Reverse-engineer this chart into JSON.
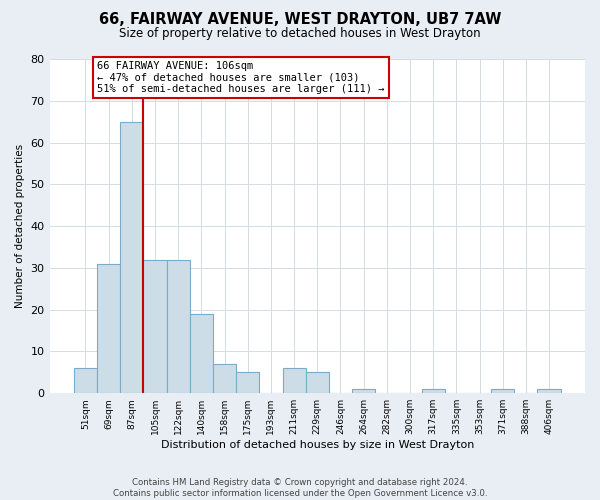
{
  "title": "66, FAIRWAY AVENUE, WEST DRAYTON, UB7 7AW",
  "subtitle": "Size of property relative to detached houses in West Drayton",
  "xlabel": "Distribution of detached houses by size in West Drayton",
  "ylabel": "Number of detached properties",
  "bin_labels": [
    "51sqm",
    "69sqm",
    "87sqm",
    "105sqm",
    "122sqm",
    "140sqm",
    "158sqm",
    "175sqm",
    "193sqm",
    "211sqm",
    "229sqm",
    "246sqm",
    "264sqm",
    "282sqm",
    "300sqm",
    "317sqm",
    "335sqm",
    "353sqm",
    "371sqm",
    "388sqm",
    "406sqm"
  ],
  "bar_heights": [
    6,
    31,
    65,
    32,
    32,
    19,
    7,
    5,
    0,
    6,
    5,
    0,
    1,
    0,
    0,
    1,
    0,
    0,
    1,
    0,
    1
  ],
  "bar_color": "#ccdde8",
  "bar_edge_color": "#7aacca",
  "vline_color": "#cc0000",
  "annotation_text": "66 FAIRWAY AVENUE: 106sqm\n← 47% of detached houses are smaller (103)\n51% of semi-detached houses are larger (111) →",
  "annotation_box_color": "#ffffff",
  "annotation_box_edge": "#cc0000",
  "ylim": [
    0,
    80
  ],
  "yticks": [
    0,
    10,
    20,
    30,
    40,
    50,
    60,
    70,
    80
  ],
  "footer_text": "Contains HM Land Registry data © Crown copyright and database right 2024.\nContains public sector information licensed under the Open Government Licence v3.0.",
  "grid_color": "#d4dce4",
  "background_color": "#ffffff",
  "fig_background_color": "#e8eef4"
}
